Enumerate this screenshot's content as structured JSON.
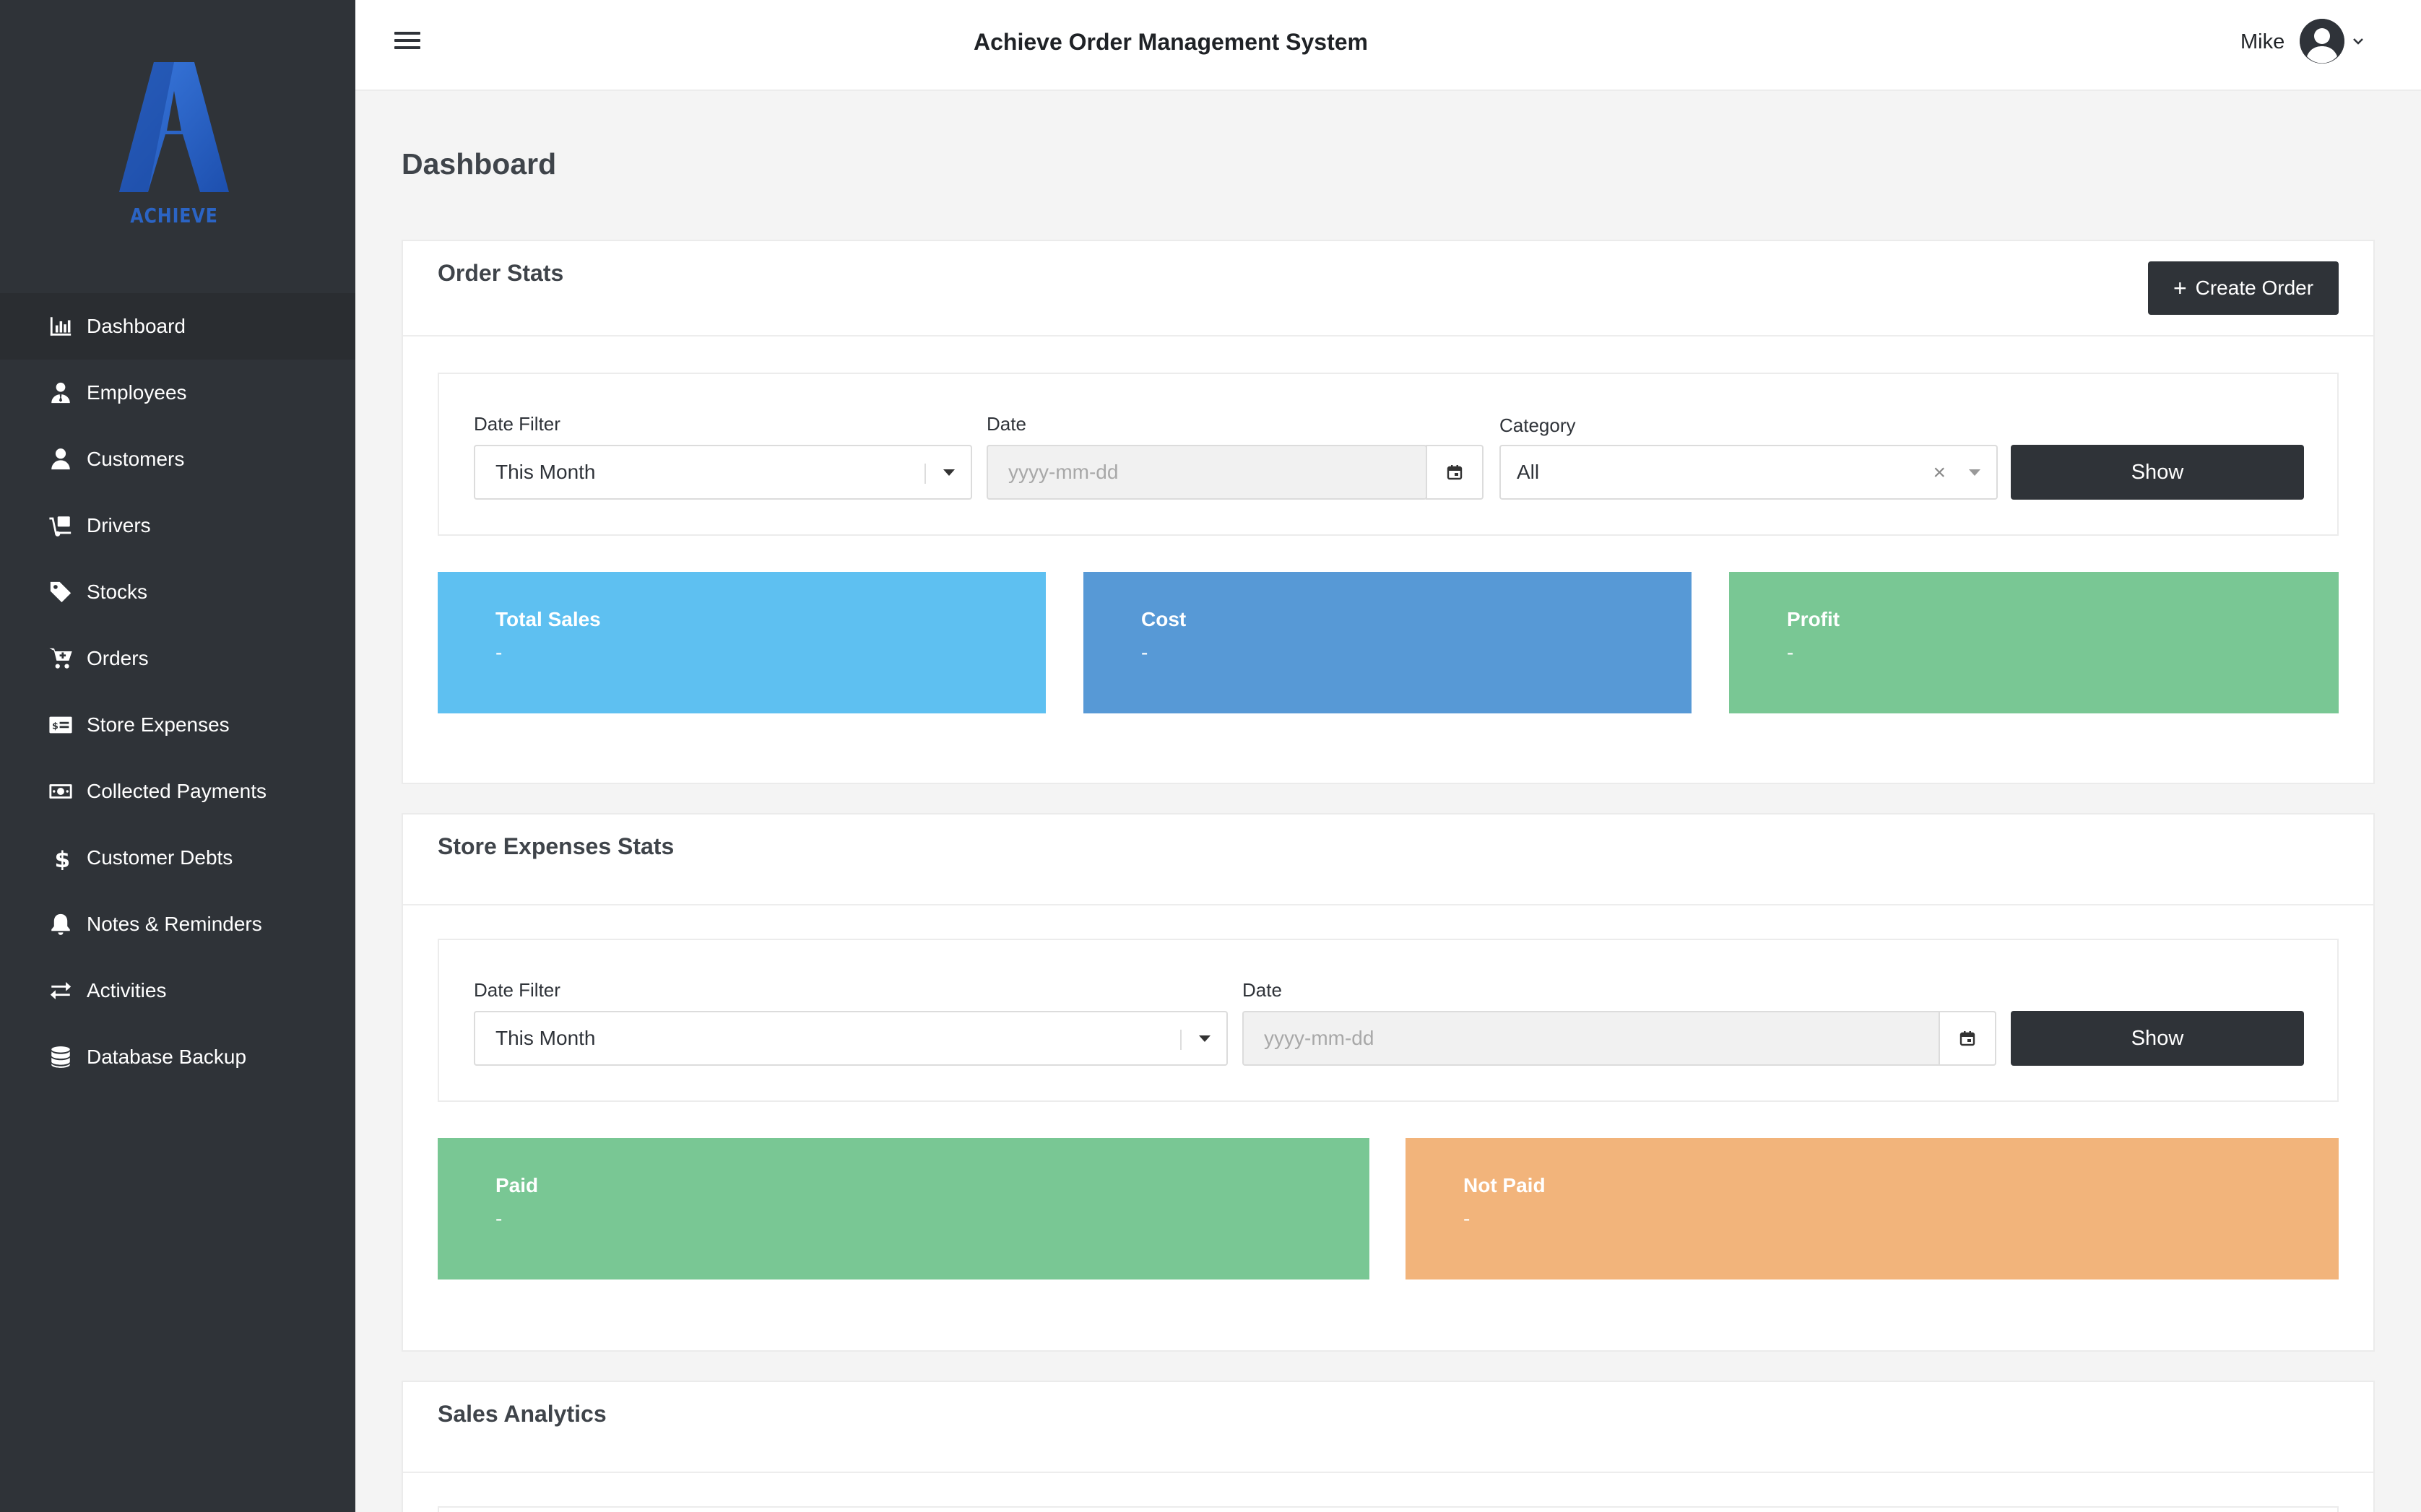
{
  "brand": {
    "logo_text": "ACHIEVE",
    "color": "#2b64c4"
  },
  "header": {
    "title": "Achieve Order Management System",
    "user_name": "Mike"
  },
  "sidebar": {
    "items": [
      {
        "label": "Dashboard",
        "icon": "chart-bar-icon",
        "active": true
      },
      {
        "label": "Employees",
        "icon": "user-tie-icon"
      },
      {
        "label": "Customers",
        "icon": "user-icon"
      },
      {
        "label": "Drivers",
        "icon": "dolly-icon"
      },
      {
        "label": "Stocks",
        "icon": "tag-icon"
      },
      {
        "label": "Orders",
        "icon": "cart-plus-icon"
      },
      {
        "label": "Store Expenses",
        "icon": "money-check-icon"
      },
      {
        "label": "Collected Payments",
        "icon": "money-bill-icon"
      },
      {
        "label": "Customer Debts",
        "icon": "dollar-sign-icon"
      },
      {
        "label": "Notes & Reminders",
        "icon": "bell-icon"
      },
      {
        "label": "Activities",
        "icon": "exchange-icon"
      },
      {
        "label": "Database Backup",
        "icon": "database-icon"
      }
    ]
  },
  "page": {
    "title": "Dashboard"
  },
  "order_stats": {
    "title": "Order Stats",
    "create_label": "Create Order",
    "date_filter_label": "Date Filter",
    "date_filter_value": "This Month",
    "date_label": "Date",
    "date_placeholder": "yyyy-mm-dd",
    "category_label": "Category",
    "category_value": "All",
    "show_label": "Show",
    "cards": [
      {
        "title": "Total Sales",
        "value": "-",
        "color": "#5ec0f1"
      },
      {
        "title": "Cost",
        "value": "-",
        "color": "#5799d6"
      },
      {
        "title": "Profit",
        "value": "-",
        "color": "#79c794"
      }
    ]
  },
  "expenses_stats": {
    "title": "Store Expenses Stats",
    "date_filter_label": "Date Filter",
    "date_filter_value": "This Month",
    "date_label": "Date",
    "date_placeholder": "yyyy-mm-dd",
    "show_label": "Show",
    "cards": [
      {
        "title": "Paid",
        "value": "-",
        "color": "#79c794"
      },
      {
        "title": "Not Paid",
        "value": "-",
        "color": "#f2b47b"
      }
    ]
  },
  "sales_analytics": {
    "title": "Sales Analytics"
  }
}
